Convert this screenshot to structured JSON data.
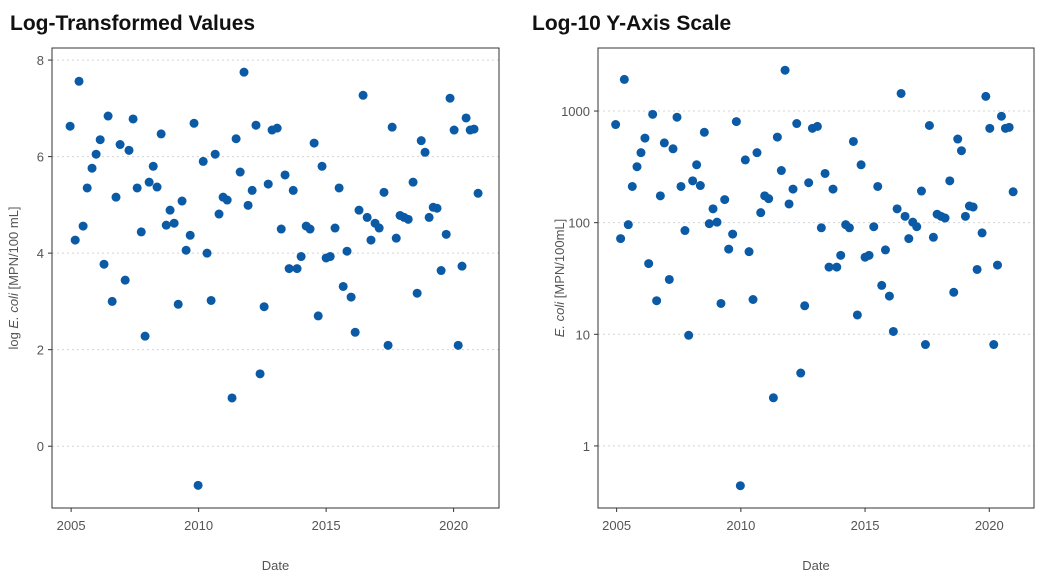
{
  "chart_data": [
    {
      "type": "scatter",
      "title": "Log-Transformed Values",
      "x_label": "Date",
      "y_label": [
        "log ",
        "E. coli",
        " [MPN/100 mL]"
      ],
      "y_label_italic": 1,
      "color": "#0b5aa5",
      "grid": true,
      "log_y": false,
      "xlim": [
        2004.25,
        2021.78
      ],
      "xticks": [
        2005,
        2010,
        2015,
        2020
      ],
      "ylim": [
        -1.28,
        8.25
      ],
      "yticks": [
        0,
        2,
        4,
        6,
        8
      ],
      "x": [
        2004.96,
        2005.16,
        2005.31,
        2005.47,
        2005.63,
        2005.82,
        2005.98,
        2006.14,
        2006.29,
        2006.45,
        2006.61,
        2006.76,
        2006.92,
        2007.12,
        2007.27,
        2007.43,
        2007.59,
        2007.75,
        2007.9,
        2008.06,
        2008.22,
        2008.37,
        2008.53,
        2008.73,
        2008.88,
        2009.04,
        2009.2,
        2009.35,
        2009.51,
        2009.67,
        2009.82,
        2009.98,
        2010.18,
        2010.33,
        2010.49,
        2010.65,
        2010.8,
        2010.96,
        2011.12,
        2011.31,
        2011.47,
        2011.63,
        2011.78,
        2011.94,
        2012.1,
        2012.25,
        2012.41,
        2012.57,
        2012.73,
        2012.88,
        2013.08,
        2013.24,
        2013.39,
        2013.55,
        2013.71,
        2013.86,
        2014.02,
        2014.22,
        2014.37,
        2014.53,
        2014.69,
        2014.84,
        2015.0,
        2015.16,
        2015.35,
        2015.51,
        2015.67,
        2015.82,
        2015.98,
        2016.14,
        2016.29,
        2016.45,
        2016.61,
        2016.76,
        2016.92,
        2017.08,
        2017.27,
        2017.43,
        2017.59,
        2017.75,
        2017.9,
        2018.06,
        2018.22,
        2018.41,
        2018.57,
        2018.73,
        2018.88,
        2019.04,
        2019.2,
        2019.35,
        2019.51,
        2019.71,
        2019.86,
        2020.02,
        2020.18,
        2020.33,
        2020.49,
        2020.65,
        2020.8,
        2020.96
      ],
      "values": [
        6.63,
        4.27,
        7.56,
        4.56,
        5.35,
        5.76,
        6.05,
        6.35,
        3.77,
        6.84,
        3.0,
        5.16,
        6.25,
        3.44,
        6.13,
        6.78,
        5.35,
        4.44,
        2.28,
        5.47,
        5.8,
        5.37,
        6.47,
        4.58,
        4.89,
        4.62,
        2.94,
        5.08,
        4.06,
        4.37,
        6.69,
        -0.81,
        5.9,
        4.0,
        3.02,
        6.05,
        4.81,
        5.16,
        5.1,
        1.0,
        6.37,
        5.68,
        7.75,
        4.99,
        5.3,
        6.65,
        1.5,
        2.89,
        5.43,
        6.55,
        6.59,
        4.5,
        5.62,
        3.68,
        5.3,
        3.68,
        3.93,
        4.56,
        4.5,
        6.28,
        2.7,
        5.8,
        3.9,
        3.93,
        4.52,
        5.35,
        3.31,
        4.04,
        3.09,
        2.36,
        4.89,
        7.27,
        4.74,
        4.27,
        4.62,
        4.52,
        5.26,
        2.09,
        6.61,
        4.31,
        4.78,
        4.74,
        4.7,
        5.47,
        3.17,
        6.33,
        6.09,
        4.74,
        4.95,
        4.93,
        3.64,
        4.39,
        7.21,
        6.55,
        2.09,
        3.73,
        6.8,
        6.55,
        6.57,
        5.24
      ]
    },
    {
      "type": "scatter",
      "title": "Log-10 Y-Axis Scale",
      "x_label": "Date",
      "y_label": [
        "E. coli",
        " [MPN/100mL]"
      ],
      "y_label_italic": 0,
      "color": "#0b5aa5",
      "grid": true,
      "log_y": true,
      "xlim": [
        2004.25,
        2021.8
      ],
      "xticks": [
        2005,
        2010,
        2015,
        2020
      ],
      "ylim": [
        0.278,
        3670
      ],
      "yticks": [
        1,
        10,
        100,
        1000
      ],
      "x": [
        2004.96,
        2005.16,
        2005.31,
        2005.47,
        2005.63,
        2005.82,
        2005.98,
        2006.14,
        2006.29,
        2006.45,
        2006.61,
        2006.76,
        2006.92,
        2007.12,
        2007.27,
        2007.43,
        2007.59,
        2007.75,
        2007.9,
        2008.06,
        2008.22,
        2008.37,
        2008.53,
        2008.73,
        2008.88,
        2009.04,
        2009.2,
        2009.35,
        2009.51,
        2009.67,
        2009.82,
        2009.98,
        2010.18,
        2010.33,
        2010.49,
        2010.65,
        2010.8,
        2010.96,
        2011.12,
        2011.31,
        2011.47,
        2011.63,
        2011.78,
        2011.94,
        2012.1,
        2012.25,
        2012.41,
        2012.57,
        2012.73,
        2012.88,
        2013.08,
        2013.24,
        2013.39,
        2013.55,
        2013.71,
        2013.86,
        2014.02,
        2014.22,
        2014.37,
        2014.53,
        2014.69,
        2014.84,
        2015.0,
        2015.16,
        2015.35,
        2015.51,
        2015.67,
        2015.82,
        2015.98,
        2016.14,
        2016.29,
        2016.45,
        2016.61,
        2016.76,
        2016.92,
        2017.08,
        2017.27,
        2017.43,
        2017.59,
        2017.75,
        2017.9,
        2018.06,
        2018.22,
        2018.41,
        2018.57,
        2018.73,
        2018.88,
        2019.04,
        2019.2,
        2019.35,
        2019.51,
        2019.71,
        2019.86,
        2020.02,
        2020.18,
        2020.33,
        2020.49,
        2020.65,
        2020.8,
        2020.96
      ],
      "values": [
        757,
        72,
        1920,
        96,
        211,
        317,
        424,
        572,
        43,
        934,
        20,
        174,
        518,
        31,
        459,
        880,
        211,
        85,
        9.8,
        237,
        330,
        215,
        645,
        98,
        133,
        101,
        18.9,
        161,
        58,
        79,
        804,
        0.44,
        365,
        55,
        20.5,
        424,
        123,
        174,
        164,
        2.7,
        584,
        293,
        2320,
        147,
        200,
        773,
        4.5,
        18,
        228,
        700,
        728,
        90,
        276,
        40,
        200,
        40,
        51,
        96,
        90,
        534,
        14.9,
        330,
        49,
        51,
        92,
        211,
        27.4,
        57,
        22,
        10.6,
        133,
        1437,
        114,
        72,
        101,
        92,
        192,
        8.1,
        742,
        74,
        119,
        114,
        110,
        237,
        23.8,
        561,
        441,
        114,
        141,
        138,
        38.1,
        81,
        1353,
        700,
        8.1,
        41.7,
        898,
        700,
        714,
        189
      ]
    }
  ]
}
